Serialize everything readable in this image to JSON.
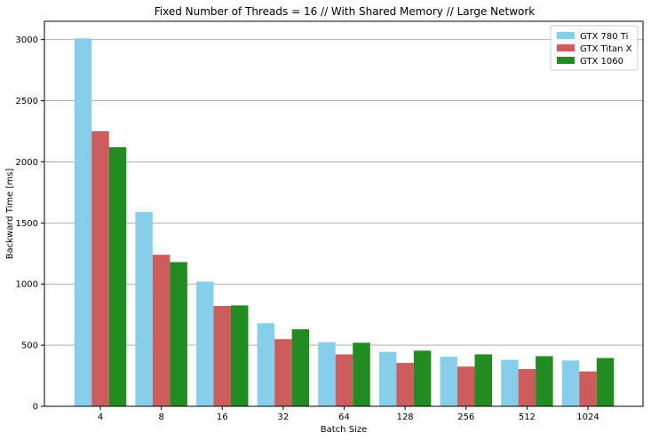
{
  "chart_data": {
    "type": "bar",
    "title": "Fixed Number of Threads = 16 // With Shared Memory // Large Network",
    "xlabel": "Batch Size",
    "ylabel": "Backward Time [ms]",
    "categories": [
      "4",
      "8",
      "16",
      "32",
      "64",
      "128",
      "256",
      "512",
      "1024"
    ],
    "ylim": [
      0,
      3150
    ],
    "yticks": [
      0,
      500,
      1000,
      1500,
      2000,
      2500,
      3000
    ],
    "grid": "horizontal",
    "legend_position": "top-right",
    "series": [
      {
        "name": "GTX 780 Ti",
        "color": "#87ceeb",
        "values": [
          3010,
          1590,
          1020,
          680,
          525,
          445,
          405,
          380,
          375
        ]
      },
      {
        "name": "GTX Titan X",
        "color": "#cd5c5c",
        "values": [
          2250,
          1240,
          820,
          550,
          425,
          355,
          325,
          305,
          285
        ]
      },
      {
        "name": "GTX 1060",
        "color": "#228b22",
        "values": [
          2120,
          1180,
          825,
          630,
          520,
          455,
          425,
          410,
          395
        ]
      }
    ]
  }
}
